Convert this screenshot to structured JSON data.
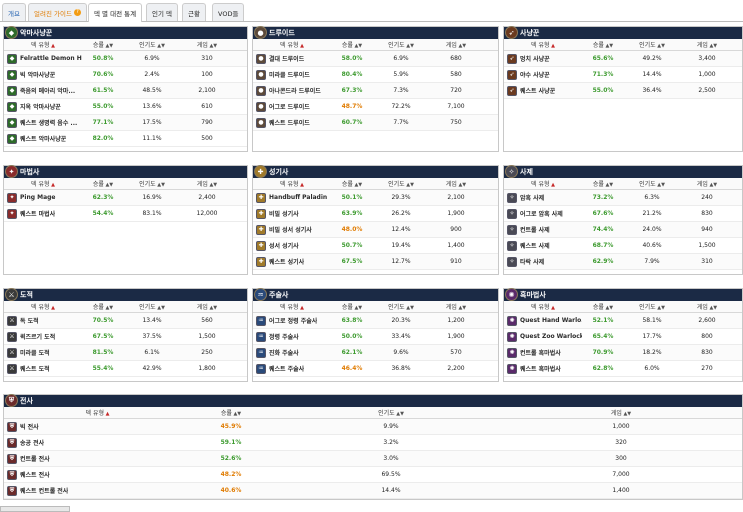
{
  "tabs": [
    {
      "label": "개요",
      "style": "blue"
    },
    {
      "label": "얼려진 가이드",
      "style": "orange",
      "badge": "?"
    },
    {
      "label": "덱 별 대전 통계",
      "style": "active"
    },
    {
      "label": "인기 덱",
      "style": "normal"
    },
    {
      "label": "근황",
      "style": "normal"
    },
    {
      "label": "VOD들",
      "style": "normal"
    }
  ],
  "headers": {
    "deck": "덱 유형",
    "winrate": "승률",
    "popularity": "인기도",
    "games": "게임"
  },
  "colors": {
    "header_bg": "#1b2a45",
    "green": "#3c9a2e",
    "orange": "#e07b00",
    "red": "#c62828"
  },
  "classes": [
    {
      "name": "악마사냥꾼",
      "icon": "demon-hunter-icon",
      "glyph": "◆",
      "tint": "#2e6b2a",
      "rows": [
        {
          "deck": "Felrattle Demon H...",
          "winrate": "50.8%",
          "wr_color": "green",
          "pop": "6.9%",
          "games": "310"
        },
        {
          "deck": "빅 악마사냥꾼",
          "winrate": "70.6%",
          "wr_color": "green",
          "pop": "2.4%",
          "games": "100"
        },
        {
          "deck": "죽음의 메아리 악마...",
          "winrate": "61.5%",
          "wr_color": "green",
          "pop": "48.5%",
          "games": "2,100"
        },
        {
          "deck": "지옥 악마사냥꾼",
          "winrate": "55.0%",
          "wr_color": "green",
          "pop": "13.6%",
          "games": "610"
        },
        {
          "deck": "퀘스트 생명력 음수 ...",
          "winrate": "77.1%",
          "wr_color": "green",
          "pop": "17.5%",
          "games": "790"
        },
        {
          "deck": "퀘스트 악마사냥꾼",
          "winrate": "82.0%",
          "wr_color": "green",
          "pop": "11.1%",
          "games": "500"
        }
      ]
    },
    {
      "name": "드루이드",
      "icon": "druid-icon",
      "glyph": "●",
      "tint": "#5d4a3a",
      "rows": [
        {
          "deck": "결대 드루이드",
          "winrate": "58.0%",
          "wr_color": "green",
          "pop": "6.9%",
          "games": "680"
        },
        {
          "deck": "미라클 드루이드",
          "winrate": "80.4%",
          "wr_color": "green",
          "pop": "5.9%",
          "games": "580"
        },
        {
          "deck": "아나콘드라 드루이드",
          "winrate": "67.3%",
          "wr_color": "green",
          "pop": "7.3%",
          "games": "720"
        },
        {
          "deck": "어그로 드루이드",
          "winrate": "48.7%",
          "wr_color": "orange",
          "pop": "72.2%",
          "games": "7,100"
        },
        {
          "deck": "퀘스트 드루이드",
          "winrate": "60.7%",
          "wr_color": "green",
          "pop": "7.7%",
          "games": "750"
        }
      ]
    },
    {
      "name": "사냥꾼",
      "icon": "hunter-icon",
      "glyph": "➶",
      "tint": "#6b3a1f",
      "rows": [
        {
          "deck": "멍치 사냥꾼",
          "winrate": "65.6%",
          "wr_color": "green",
          "pop": "49.2%",
          "games": "3,400"
        },
        {
          "deck": "야수 사냥꾼",
          "winrate": "71.3%",
          "wr_color": "green",
          "pop": "14.4%",
          "games": "1,000"
        },
        {
          "deck": "퀘스트 사냥꾼",
          "winrate": "55.0%",
          "wr_color": "green",
          "pop": "36.4%",
          "games": "2,500"
        }
      ]
    },
    {
      "name": "마법사",
      "icon": "mage-icon",
      "glyph": "✦",
      "tint": "#8a2c2c",
      "rows": [
        {
          "deck": "Ping Mage",
          "winrate": "62.3%",
          "wr_color": "green",
          "pop": "16.9%",
          "games": "2,400"
        },
        {
          "deck": "퀘스트 마법사",
          "winrate": "54.4%",
          "wr_color": "green",
          "pop": "83.1%",
          "games": "12,000"
        }
      ]
    },
    {
      "name": "성기사",
      "icon": "paladin-icon",
      "glyph": "✚",
      "tint": "#a07a2a",
      "rows": [
        {
          "deck": "Handbuff Paladin",
          "winrate": "50.1%",
          "wr_color": "green",
          "pop": "29.3%",
          "games": "2,100"
        },
        {
          "deck": "비밀 성기사",
          "winrate": "63.9%",
          "wr_color": "green",
          "pop": "26.2%",
          "games": "1,900"
        },
        {
          "deck": "비밀 성서 성기사",
          "winrate": "48.0%",
          "wr_color": "orange",
          "pop": "12.4%",
          "games": "900"
        },
        {
          "deck": "성서 성기사",
          "winrate": "50.7%",
          "wr_color": "green",
          "pop": "19.4%",
          "games": "1,400"
        },
        {
          "deck": "퀘스트 성기사",
          "winrate": "67.5%",
          "wr_color": "green",
          "pop": "12.7%",
          "games": "910"
        }
      ]
    },
    {
      "name": "사제",
      "icon": "priest-icon",
      "glyph": "✧",
      "tint": "#4a4a55",
      "rows": [
        {
          "deck": "암흑 사제",
          "winrate": "73.2%",
          "wr_color": "green",
          "pop": "6.3%",
          "games": "240"
        },
        {
          "deck": "어그로 암흑 사제",
          "winrate": "67.6%",
          "wr_color": "green",
          "pop": "21.2%",
          "games": "830"
        },
        {
          "deck": "컨트롤 사제",
          "winrate": "74.4%",
          "wr_color": "green",
          "pop": "24.0%",
          "games": "940"
        },
        {
          "deck": "퀘스트 사제",
          "winrate": "68.7%",
          "wr_color": "green",
          "pop": "40.6%",
          "games": "1,500"
        },
        {
          "deck": "타락 사제",
          "winrate": "62.9%",
          "wr_color": "green",
          "pop": "7.9%",
          "games": "310"
        }
      ]
    },
    {
      "name": "도적",
      "icon": "rogue-icon",
      "glyph": "⚔",
      "tint": "#3a3a3a",
      "rows": [
        {
          "deck": "독 도적",
          "winrate": "70.5%",
          "wr_color": "green",
          "pop": "13.4%",
          "games": "560"
        },
        {
          "deck": "퀵즈르기 도적",
          "winrate": "67.5%",
          "wr_color": "green",
          "pop": "37.5%",
          "games": "1,500"
        },
        {
          "deck": "미라클 도적",
          "winrate": "81.5%",
          "wr_color": "green",
          "pop": "6.1%",
          "games": "250"
        },
        {
          "deck": "퀘스트 도적",
          "winrate": "55.4%",
          "wr_color": "green",
          "pop": "42.9%",
          "games": "1,800"
        }
      ]
    },
    {
      "name": "주술사",
      "icon": "shaman-icon",
      "glyph": "♒",
      "tint": "#2a4a7a",
      "rows": [
        {
          "deck": "어그로 정령 주술사",
          "winrate": "63.8%",
          "wr_color": "green",
          "pop": "20.3%",
          "games": "1,200"
        },
        {
          "deck": "정령 주술사",
          "winrate": "50.0%",
          "wr_color": "green",
          "pop": "33.4%",
          "games": "1,900"
        },
        {
          "deck": "진화 주술사",
          "winrate": "62.1%",
          "wr_color": "green",
          "pop": "9.6%",
          "games": "570"
        },
        {
          "deck": "퀘스트 주술사",
          "winrate": "46.4%",
          "wr_color": "orange",
          "pop": "36.8%",
          "games": "2,200"
        }
      ]
    },
    {
      "name": "흑마법사",
      "icon": "warlock-icon",
      "glyph": "✺",
      "tint": "#5a2a6a",
      "rows": [
        {
          "deck": "Quest Hand Warlo...",
          "winrate": "52.1%",
          "wr_color": "green",
          "pop": "58.1%",
          "games": "2,600"
        },
        {
          "deck": "Quest Zoo Warlock",
          "winrate": "65.4%",
          "wr_color": "green",
          "pop": "17.7%",
          "games": "800"
        },
        {
          "deck": "컨트롤 흑마법사",
          "winrate": "70.9%",
          "wr_color": "green",
          "pop": "18.2%",
          "games": "830"
        },
        {
          "deck": "퀘스트 흑마법사",
          "winrate": "62.8%",
          "wr_color": "green",
          "pop": "6.0%",
          "games": "270"
        }
      ]
    }
  ],
  "warrior": {
    "name": "전사",
    "icon": "warrior-icon",
    "glyph": "⛨",
    "tint": "#6b2a2a",
    "rows": [
      {
        "deck": "빅 전사",
        "winrate": "45.9%",
        "wr_color": "orange",
        "pop": "9.9%",
        "games": "1,000"
      },
      {
        "deck": "송공 전사",
        "winrate": "59.1%",
        "wr_color": "green",
        "pop": "3.2%",
        "games": "320"
      },
      {
        "deck": "컨트롤 전사",
        "winrate": "52.6%",
        "wr_color": "green",
        "pop": "3.0%",
        "games": "300"
      },
      {
        "deck": "퀘스트 전사",
        "winrate": "48.2%",
        "wr_color": "orange",
        "pop": "69.5%",
        "games": "7,000"
      },
      {
        "deck": "퀘스트 컨트롤 전사",
        "winrate": "40.6%",
        "wr_color": "orange",
        "pop": "14.4%",
        "games": "1,400"
      }
    ]
  }
}
